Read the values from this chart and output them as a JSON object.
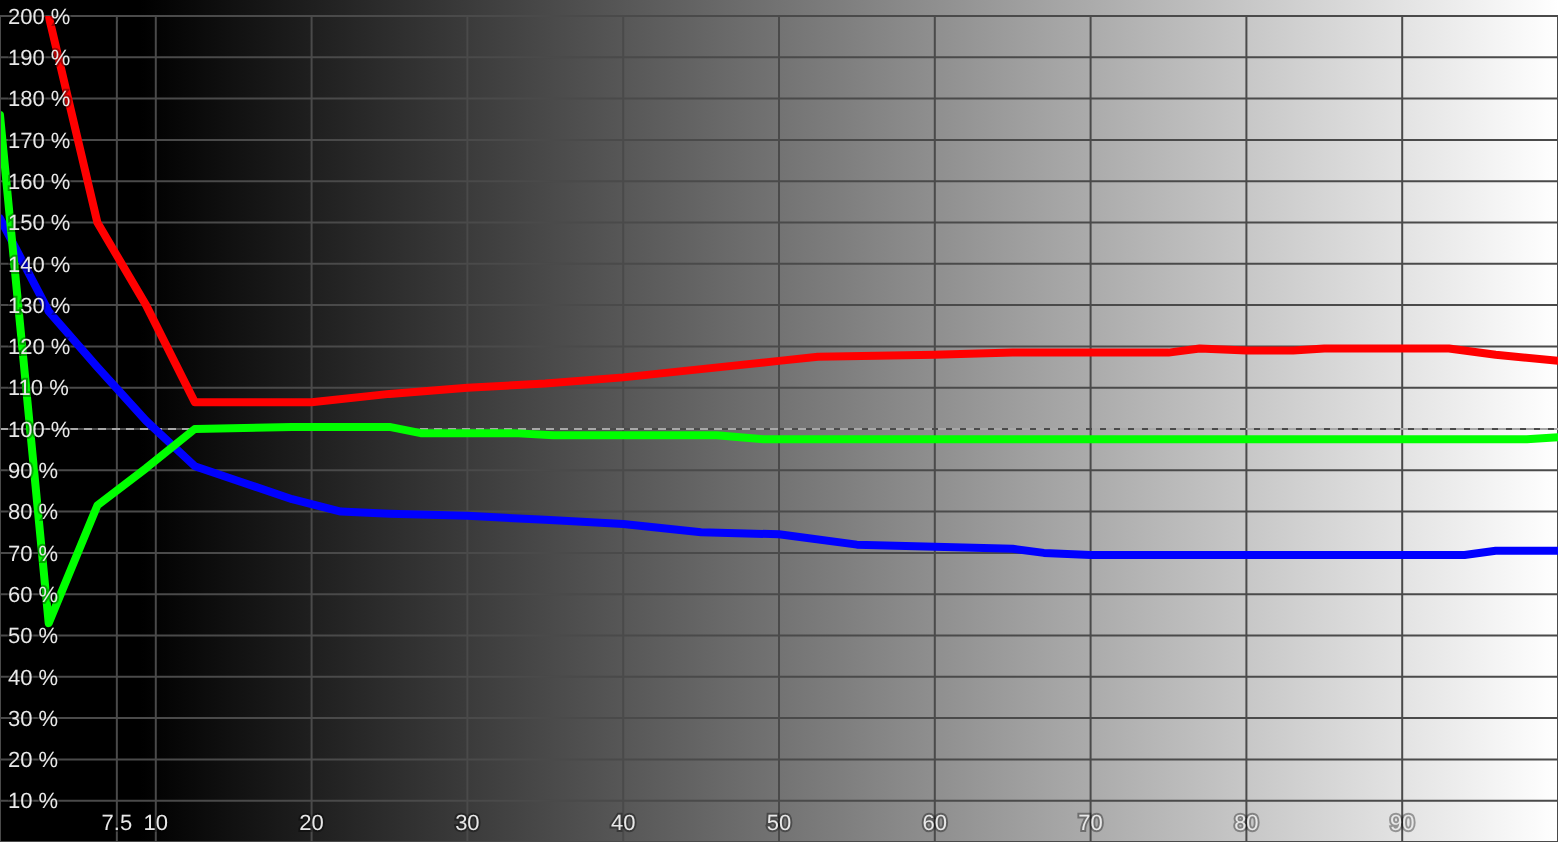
{
  "chart_data": {
    "type": "line",
    "xlim": [
      0,
      100
    ],
    "xticks": [
      7.5,
      10,
      20,
      30,
      40,
      50,
      60,
      70,
      80,
      90
    ],
    "ylim": [
      0,
      200
    ],
    "yticks": [
      {
        "value": 10,
        "label": "10 %"
      },
      {
        "value": 20,
        "label": "20 %"
      },
      {
        "value": 30,
        "label": "30 %"
      },
      {
        "value": 40,
        "label": "40 %"
      },
      {
        "value": 50,
        "label": "50 %"
      },
      {
        "value": 60,
        "label": "60 %"
      },
      {
        "value": 70,
        "label": "70 %"
      },
      {
        "value": 80,
        "label": "80 %"
      },
      {
        "value": 90,
        "label": "90 %"
      },
      {
        "value": 100,
        "label": "100 %"
      },
      {
        "value": 110,
        "label": "110 %"
      },
      {
        "value": 120,
        "label": "120 %"
      },
      {
        "value": 130,
        "label": "130 %"
      },
      {
        "value": 140,
        "label": "140 %"
      },
      {
        "value": 150,
        "label": "150 %"
      },
      {
        "value": 160,
        "label": "160 %"
      },
      {
        "value": 170,
        "label": "170 %"
      },
      {
        "value": 180,
        "label": "180 %"
      },
      {
        "value": 190,
        "label": "190 %"
      },
      {
        "value": 200,
        "label": "200 %"
      }
    ],
    "grid": true,
    "marker": "none",
    "line_style": "solid",
    "ref_lines": [
      {
        "axis": "y",
        "value": 100,
        "color": "#a8a8a8",
        "line_style": "dashed"
      }
    ],
    "series": [
      {
        "color": "#ff0000",
        "x": [
          3.125,
          6.25,
          9.375,
          12.5,
          20,
          25,
          30,
          35,
          40,
          45,
          50,
          52.5,
          60,
          65,
          70,
          75,
          77,
          80,
          83,
          85,
          93,
          96,
          100
        ],
        "values": [
          200,
          150,
          130,
          106.5,
          106.5,
          108.5,
          110,
          111,
          112.5,
          114.5,
          116.5,
          117.5,
          118,
          118.5,
          118.5,
          118.5,
          119.5,
          119,
          119,
          119.5,
          119.5,
          118,
          116.5
        ]
      },
      {
        "color": "#0000ff",
        "x": [
          0,
          3.125,
          6.25,
          9.375,
          12.5,
          15.625,
          18.75,
          21.875,
          25,
          30,
          35,
          40,
          45,
          50,
          55,
          60,
          65,
          67,
          70,
          80,
          90,
          94,
          96,
          100
        ],
        "values": [
          151,
          128.5,
          115,
          102,
          91,
          87,
          83,
          80,
          79.5,
          79,
          78,
          77,
          75,
          74.5,
          72,
          71.5,
          71,
          70,
          69.5,
          69.5,
          69.5,
          69.5,
          70.5,
          70.5
        ]
      },
      {
        "color": "#00ff00",
        "x": [
          0,
          3.125,
          6.25,
          9.375,
          12.5,
          18.75,
          21.875,
          25,
          27,
          33,
          35.5,
          46,
          49,
          60,
          80,
          98,
          100
        ],
        "values": [
          176,
          53,
          81.5,
          90.5,
          100,
          100.5,
          100.5,
          100.5,
          99,
          99,
          98.5,
          98.5,
          97.5,
          97.5,
          97.5,
          97.5,
          98
        ]
      }
    ]
  }
}
